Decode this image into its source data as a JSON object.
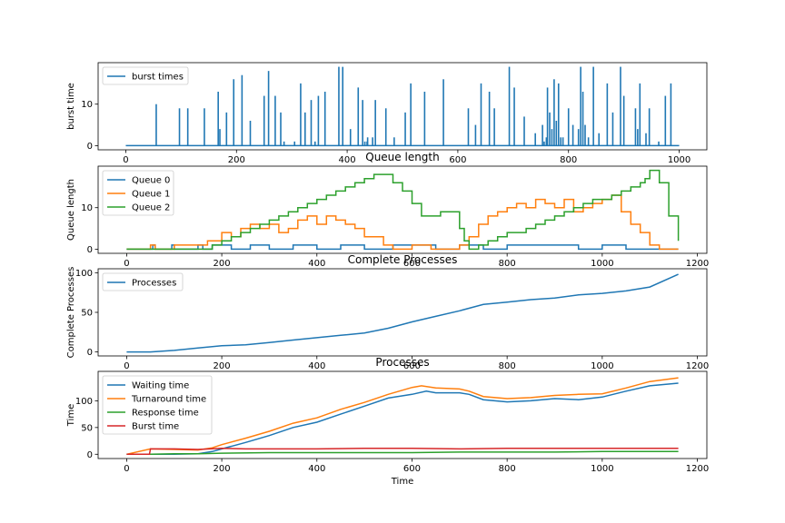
{
  "chart_data": [
    {
      "type": "bar",
      "title": "",
      "xlabel": "",
      "ylabel": "burst time",
      "xlim": [
        -50,
        1050
      ],
      "ylim": [
        -1,
        20
      ],
      "xticks": [
        0,
        200,
        400,
        600,
        800,
        1000
      ],
      "yticks": [
        0,
        10
      ],
      "legend": "upper-left",
      "series": [
        {
          "name": "burst times",
          "color": "#1f77b4",
          "x": [
            55,
            97,
            112,
            142,
            167,
            170,
            182,
            195,
            210,
            225,
            250,
            258,
            270,
            280,
            286,
            305,
            316,
            324,
            335,
            342,
            348,
            360,
            385,
            392,
            406,
            420,
            428,
            432,
            436,
            437,
            446,
            451,
            470,
            485,
            505,
            515,
            540,
            574,
            619,
            632,
            642,
            657,
            666,
            693,
            702,
            720,
            740,
            753,
            756,
            760,
            762,
            766,
            770,
            774,
            778,
            782,
            786,
            790,
            800,
            808,
            818,
            822,
            826,
            830,
            836,
            845,
            855,
            870,
            880,
            894,
            900,
            921,
            925,
            929,
            940,
            946,
            963,
            975,
            985
          ],
          "values": [
            10,
            9,
            9,
            9,
            13,
            4,
            8,
            16,
            17,
            6,
            12,
            18,
            12,
            8,
            1,
            1,
            15,
            8,
            11,
            1,
            12,
            13,
            19,
            19,
            4,
            14,
            11,
            1,
            1,
            2,
            2,
            11,
            9,
            2,
            8,
            15,
            13,
            16,
            9,
            5,
            15,
            13,
            9,
            19,
            14,
            7,
            3,
            5,
            1,
            2,
            14,
            8,
            4,
            16,
            6,
            15,
            2,
            2,
            9,
            5,
            4,
            19,
            13,
            5,
            2,
            19,
            3,
            15,
            8,
            19,
            12,
            9,
            4,
            15,
            3,
            9,
            1,
            12,
            15
          ]
        }
      ]
    },
    {
      "type": "line",
      "title": "Queue length",
      "xlabel": "",
      "ylabel": "Queue length",
      "xlim": [
        -60,
        1220
      ],
      "ylim": [
        -1,
        20
      ],
      "xticks": [
        0,
        200,
        400,
        600,
        800,
        1000,
        1200
      ],
      "yticks": [
        0,
        10
      ],
      "legend": "upper-left",
      "series": [
        {
          "name": "Queue 0",
          "color": "#1f77b4",
          "x": [
            0,
            50,
            55,
            60,
            95,
            100,
            150,
            160,
            180,
            200,
            220,
            260,
            300,
            350,
            400,
            450,
            500,
            560,
            600,
            650,
            700,
            750,
            800,
            850,
            900,
            950,
            1000,
            1050,
            1100,
            1160
          ],
          "y": [
            0,
            0,
            1,
            0,
            1,
            0,
            1,
            0,
            1,
            1,
            0,
            1,
            0,
            1,
            0,
            1,
            0,
            1,
            1,
            0,
            1,
            0,
            1,
            1,
            1,
            0,
            1,
            0,
            0,
            0
          ]
        },
        {
          "name": "Queue 1",
          "color": "#ff7f0e",
          "x": [
            0,
            40,
            50,
            60,
            100,
            150,
            170,
            200,
            220,
            240,
            260,
            280,
            300,
            320,
            340,
            360,
            380,
            400,
            420,
            440,
            460,
            480,
            500,
            540,
            560,
            600,
            640,
            680,
            700,
            720,
            740,
            760,
            780,
            800,
            820,
            840,
            860,
            880,
            900,
            920,
            940,
            960,
            980,
            1000,
            1020,
            1040,
            1060,
            1080,
            1100,
            1120,
            1160
          ],
          "y": [
            0,
            0,
            1,
            0,
            1,
            1,
            2,
            4,
            3,
            5,
            6,
            5,
            6,
            4,
            5,
            7,
            8,
            6,
            8,
            7,
            6,
            5,
            3,
            1,
            0,
            1,
            0,
            0,
            1,
            3,
            6,
            8,
            9,
            10,
            11,
            10,
            12,
            11,
            10,
            12,
            9,
            10,
            11,
            12,
            13,
            9,
            6,
            4,
            1,
            0,
            0
          ]
        },
        {
          "name": "Queue 2",
          "color": "#2ca02c",
          "x": [
            0,
            100,
            140,
            180,
            200,
            220,
            240,
            260,
            280,
            300,
            320,
            340,
            360,
            380,
            400,
            420,
            440,
            460,
            480,
            500,
            520,
            540,
            560,
            580,
            600,
            620,
            640,
            660,
            680,
            700,
            710,
            720,
            740,
            760,
            780,
            800,
            820,
            840,
            860,
            880,
            900,
            920,
            940,
            960,
            980,
            1000,
            1020,
            1040,
            1060,
            1080,
            1090,
            1100,
            1120,
            1140,
            1160
          ],
          "y": [
            0,
            0,
            0,
            1,
            2,
            3,
            4,
            5,
            6,
            7,
            8,
            9,
            10,
            11,
            12,
            13,
            14,
            15,
            16,
            17,
            18,
            18,
            16,
            14,
            11,
            8,
            8,
            9,
            9,
            5,
            2,
            0,
            1,
            2,
            3,
            4,
            4,
            5,
            6,
            7,
            8,
            9,
            10,
            11,
            12,
            12,
            13,
            14,
            15,
            16,
            17,
            19,
            16,
            8,
            2
          ]
        }
      ]
    },
    {
      "type": "line",
      "title": "Complete Processes",
      "xlabel": "",
      "ylabel": "Complete Processes",
      "xlim": [
        -60,
        1220
      ],
      "ylim": [
        -5,
        105
      ],
      "xticks": [
        0,
        200,
        400,
        600,
        800,
        1000,
        1200
      ],
      "yticks": [
        0,
        50,
        100
      ],
      "legend": "upper-left",
      "series": [
        {
          "name": "Processes",
          "color": "#1f77b4",
          "x": [
            0,
            50,
            100,
            150,
            200,
            250,
            300,
            350,
            400,
            450,
            500,
            550,
            600,
            650,
            700,
            750,
            800,
            850,
            900,
            950,
            1000,
            1050,
            1100,
            1160
          ],
          "y": [
            0,
            0,
            2,
            5,
            8,
            9,
            12,
            15,
            18,
            21,
            24,
            30,
            38,
            45,
            52,
            60,
            63,
            66,
            68,
            72,
            74,
            77,
            82,
            98
          ]
        }
      ]
    },
    {
      "type": "line",
      "title": "Processes",
      "xlabel": "Time",
      "ylabel": "Time",
      "xlim": [
        -60,
        1220
      ],
      "ylim": [
        -8,
        155
      ],
      "xticks": [
        0,
        200,
        400,
        600,
        800,
        1000,
        1200
      ],
      "yticks": [
        0,
        50,
        100
      ],
      "legend": "upper-left",
      "series": [
        {
          "name": "Waiting time",
          "color": "#1f77b4",
          "x": [
            0,
            50,
            100,
            150,
            180,
            200,
            250,
            300,
            350,
            400,
            450,
            500,
            550,
            600,
            630,
            650,
            700,
            720,
            750,
            800,
            850,
            900,
            950,
            1000,
            1050,
            1100,
            1160
          ],
          "y": [
            0,
            0,
            0,
            1,
            5,
            10,
            22,
            35,
            50,
            60,
            75,
            90,
            105,
            112,
            118,
            115,
            115,
            112,
            102,
            98,
            100,
            104,
            102,
            107,
            118,
            128,
            133
          ]
        },
        {
          "name": "Turnaround time",
          "color": "#ff7f0e",
          "x": [
            0,
            50,
            100,
            150,
            180,
            200,
            250,
            300,
            350,
            400,
            450,
            500,
            550,
            600,
            620,
            650,
            700,
            720,
            750,
            800,
            850,
            900,
            950,
            1000,
            1050,
            1100,
            1160
          ],
          "y": [
            0,
            10,
            9,
            8,
            12,
            18,
            30,
            43,
            58,
            68,
            84,
            97,
            112,
            125,
            128,
            124,
            122,
            118,
            108,
            104,
            106,
            110,
            112,
            113,
            124,
            136,
            143
          ]
        },
        {
          "name": "Response time",
          "color": "#2ca02c",
          "x": [
            0,
            50,
            100,
            150,
            200,
            300,
            400,
            500,
            600,
            700,
            800,
            900,
            1000,
            1100,
            1160
          ],
          "y": [
            0,
            0,
            1,
            1,
            2,
            3,
            3,
            3,
            3,
            4,
            4,
            4,
            5,
            5,
            5
          ]
        },
        {
          "name": "Burst time",
          "color": "#d62728",
          "x": [
            0,
            48,
            50,
            100,
            150,
            200,
            250,
            300,
            400,
            500,
            600,
            700,
            800,
            900,
            1000,
            1100,
            1160
          ],
          "y": [
            0,
            0,
            10,
            10,
            9,
            11,
            10,
            10,
            10,
            11,
            11,
            10,
            11,
            11,
            11,
            11,
            11
          ]
        }
      ]
    }
  ]
}
